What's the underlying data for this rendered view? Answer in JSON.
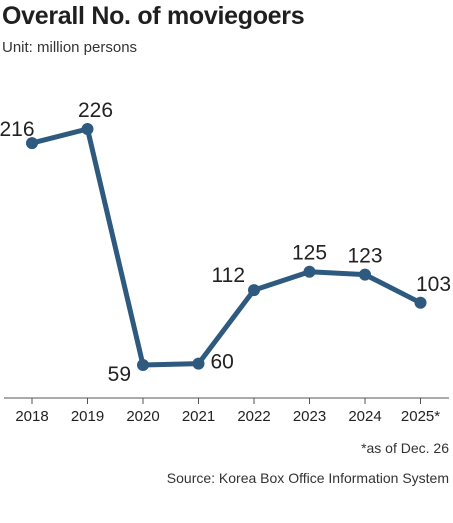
{
  "title": "Overall No. of moviegoers",
  "unit": "Unit: million persons",
  "footnote": "*as of Dec. 26",
  "source": "Source: Korea Box Office Information System",
  "colors": {
    "line": "#2e5a7f",
    "axis": "#555555",
    "text": "#222222"
  },
  "chart_data": {
    "type": "line",
    "categories": [
      "2018",
      "2019",
      "2020",
      "2021",
      "2022",
      "2023",
      "2024",
      "2025*"
    ],
    "values": [
      216,
      226,
      59,
      60,
      112,
      125,
      123,
      103
    ],
    "data_labels": [
      "216",
      "226",
      "59",
      "60",
      "112",
      "125",
      "123",
      "103"
    ],
    "xlabel": "",
    "ylabel": "",
    "grid": false,
    "legend": "none"
  }
}
